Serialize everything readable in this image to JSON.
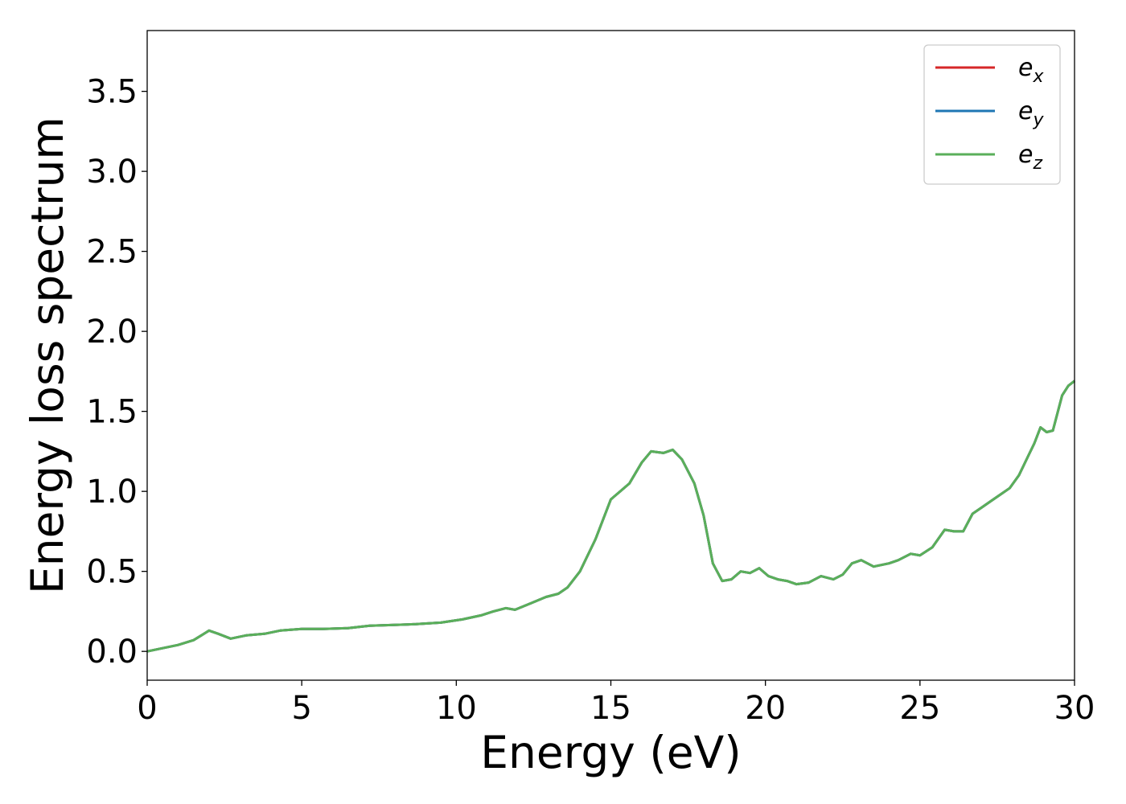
{
  "chart_data": {
    "type": "line",
    "xlabel": "Energy (eV)",
    "ylabel": "Energy loss spectrum",
    "xlim": [
      0,
      30
    ],
    "ylim": [
      -0.18,
      3.88
    ],
    "xticks": [
      "0",
      "5",
      "10",
      "15",
      "20",
      "25",
      "30"
    ],
    "yticks": [
      "0.0",
      "0.5",
      "1.0",
      "1.5",
      "2.0",
      "2.5",
      "3.0",
      "3.5"
    ],
    "grid": false,
    "legend_position": "top-right",
    "x": [
      0,
      0.5,
      1,
      1.5,
      1.75,
      2,
      2.3,
      2.7,
      3.2,
      3.8,
      4.3,
      5,
      5.7,
      6.5,
      7.2,
      8,
      8.7,
      9.5,
      10.2,
      10.8,
      11.2,
      11.6,
      11.9,
      12.4,
      12.9,
      13.3,
      13.6,
      14,
      14.5,
      15,
      15.3,
      15.6,
      16,
      16.3,
      16.7,
      17,
      17.3,
      17.7,
      18,
      18.3,
      18.6,
      18.9,
      19.2,
      19.5,
      19.8,
      20.1,
      20.4,
      20.7,
      21,
      21.4,
      21.8,
      22.2,
      22.5,
      22.8,
      23.1,
      23.5,
      24,
      24.3,
      24.7,
      25,
      25.4,
      25.8,
      26.1,
      26.4,
      26.7,
      27,
      27.3,
      27.6,
      27.9,
      28.2,
      28.5,
      28.7,
      28.9,
      29.1,
      29.3,
      29.6,
      29.8,
      30
    ],
    "series": [
      {
        "name": "e_x",
        "color": "#d62728",
        "values": [
          0.0,
          0.02,
          0.04,
          0.07,
          0.1,
          0.13,
          0.11,
          0.08,
          0.1,
          0.11,
          0.13,
          0.14,
          0.14,
          0.145,
          0.16,
          0.165,
          0.17,
          0.18,
          0.2,
          0.225,
          0.25,
          0.27,
          0.26,
          0.3,
          0.34,
          0.36,
          0.4,
          0.5,
          0.7,
          0.95,
          1.0,
          1.05,
          1.18,
          1.25,
          1.24,
          1.26,
          1.2,
          1.05,
          0.85,
          0.55,
          0.44,
          0.45,
          0.5,
          0.49,
          0.52,
          0.47,
          0.45,
          0.44,
          0.42,
          0.43,
          0.47,
          0.45,
          0.48,
          0.55,
          0.57,
          0.53,
          0.55,
          0.57,
          0.61,
          0.6,
          0.65,
          0.76,
          0.75,
          0.75,
          0.86,
          0.9,
          0.94,
          0.98,
          1.02,
          1.1,
          1.22,
          1.3,
          1.4,
          1.37,
          1.38,
          1.6,
          1.66,
          1.69
        ]
      },
      {
        "name": "e_y",
        "color": "#1f77b4",
        "values": [
          0.0,
          0.02,
          0.04,
          0.07,
          0.1,
          0.13,
          0.11,
          0.08,
          0.1,
          0.11,
          0.13,
          0.14,
          0.14,
          0.145,
          0.16,
          0.165,
          0.17,
          0.18,
          0.2,
          0.225,
          0.25,
          0.27,
          0.26,
          0.3,
          0.34,
          0.36,
          0.4,
          0.5,
          0.7,
          0.95,
          1.0,
          1.05,
          1.18,
          1.25,
          1.24,
          1.26,
          1.2,
          1.05,
          0.85,
          0.55,
          0.44,
          0.45,
          0.5,
          0.49,
          0.52,
          0.47,
          0.45,
          0.44,
          0.42,
          0.43,
          0.47,
          0.45,
          0.48,
          0.55,
          0.57,
          0.53,
          0.55,
          0.57,
          0.61,
          0.6,
          0.65,
          0.76,
          0.75,
          0.75,
          0.86,
          0.9,
          0.94,
          0.98,
          1.02,
          1.1,
          1.22,
          1.3,
          1.4,
          1.37,
          1.38,
          1.6,
          1.66,
          1.69
        ]
      },
      {
        "name": "e_z",
        "color": "#5aaf5a",
        "values": [
          0.0,
          0.02,
          0.04,
          0.07,
          0.1,
          0.13,
          0.11,
          0.08,
          0.1,
          0.11,
          0.13,
          0.14,
          0.14,
          0.145,
          0.16,
          0.165,
          0.17,
          0.18,
          0.2,
          0.225,
          0.25,
          0.27,
          0.26,
          0.3,
          0.34,
          0.36,
          0.4,
          0.5,
          0.7,
          0.95,
          1.0,
          1.05,
          1.18,
          1.25,
          1.24,
          1.26,
          1.2,
          1.05,
          0.85,
          0.55,
          0.44,
          0.45,
          0.5,
          0.49,
          0.52,
          0.47,
          0.45,
          0.44,
          0.42,
          0.43,
          0.47,
          0.45,
          0.48,
          0.55,
          0.57,
          0.53,
          0.55,
          0.57,
          0.61,
          0.6,
          0.65,
          0.76,
          0.75,
          0.75,
          0.86,
          0.9,
          0.94,
          0.98,
          1.02,
          1.1,
          1.22,
          1.3,
          1.4,
          1.37,
          1.38,
          1.6,
          1.66,
          1.69
        ]
      }
    ],
    "legend": [
      {
        "base": "e",
        "sub": "x",
        "color": "#d62728"
      },
      {
        "base": "e",
        "sub": "y",
        "color": "#1f77b4"
      },
      {
        "base": "e",
        "sub": "z",
        "color": "#5aaf5a"
      }
    ]
  }
}
